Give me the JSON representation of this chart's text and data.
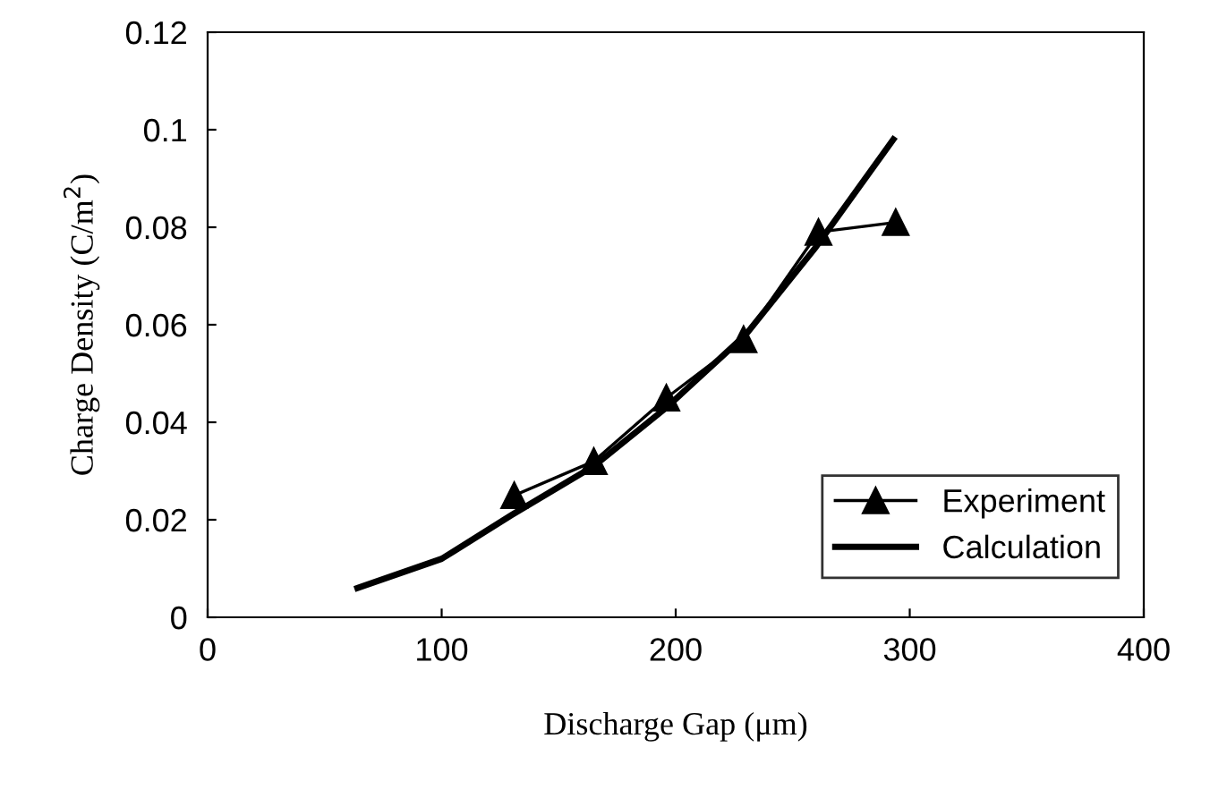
{
  "chart_data": {
    "type": "line",
    "xlabel": "Discharge Gap (μm)",
    "ylabel": "Charge Density (C/m$^{2}$)",
    "xlim": [
      0,
      400
    ],
    "xticks": [
      0,
      100,
      200,
      300,
      400
    ],
    "ylim": [
      0,
      0.12
    ],
    "yticks": [
      0,
      0.02,
      0.04,
      0.06,
      0.08,
      {
        "value": 0.1,
        "label": "0.1"
      },
      0.12
    ],
    "grid": false,
    "legend": "bottom right",
    "series": [
      {
        "name": "Experiment",
        "color": "#000000",
        "marker": "triangle",
        "x": [
          131,
          165,
          196,
          229,
          261,
          294
        ],
        "values": [
          0.025,
          0.032,
          0.045,
          0.057,
          0.079,
          0.081
        ]
      },
      {
        "name": "Calculation",
        "color": "#000000",
        "marker": "none",
        "x": [
          64,
          100,
          130,
          165,
          196,
          230,
          260,
          293
        ],
        "values": [
          0.006,
          0.012,
          0.021,
          0.031,
          0.043,
          0.058,
          0.076,
          0.098
        ]
      }
    ]
  }
}
